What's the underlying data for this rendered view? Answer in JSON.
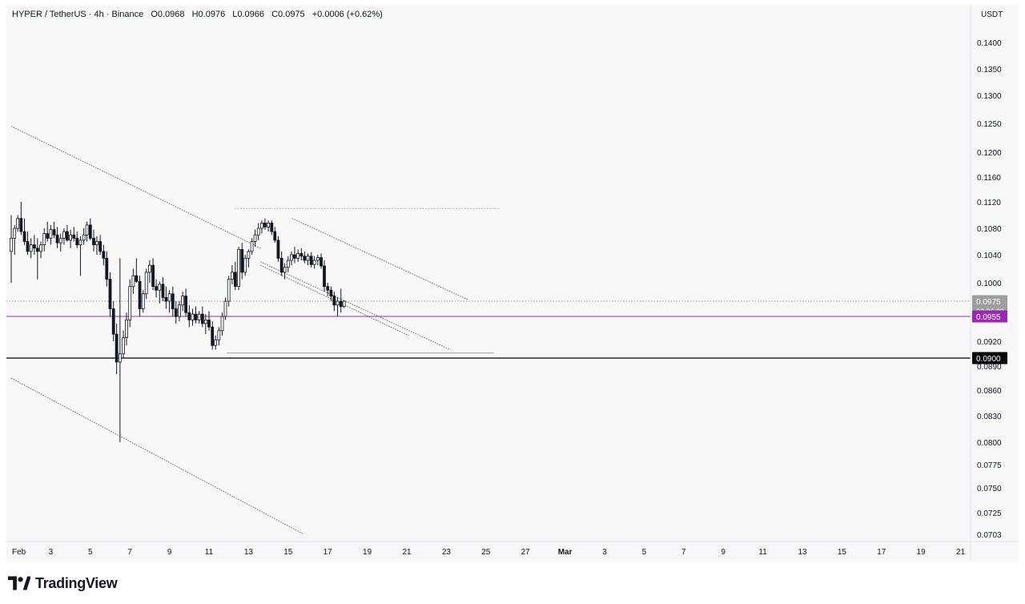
{
  "legend": {
    "symbol": "HYPER / TetherUS · 4h · Binance",
    "open": "O0.0968",
    "high": "H0.0976",
    "low": "L0.0966",
    "close": "C0.0975",
    "change": "+0.0006 (+0.62%)"
  },
  "branding": {
    "name": "TradingView"
  },
  "chart_data": {
    "type": "candlestick",
    "currency": "USDT",
    "timeframe": "4h",
    "x_tick_labels": [
      "Feb",
      "3",
      "5",
      "7",
      "9",
      "11",
      "13",
      "15",
      "17",
      "19",
      "21",
      "23",
      "25",
      "27",
      "Mar",
      "3",
      "5",
      "7",
      "9",
      "11",
      "13",
      "15",
      "17",
      "19",
      "21"
    ],
    "y_tick_labels": [
      "0.1400",
      "0.1350",
      "0.1300",
      "0.1250",
      "0.1200",
      "0.1160",
      "0.1120",
      "0.1080",
      "0.1040",
      "0.1000",
      "0.0920",
      "0.0890",
      "0.0860",
      "0.0830",
      "0.0800",
      "0.0775",
      "0.0750",
      "0.0725",
      "0.0703"
    ],
    "price_badges": [
      {
        "label": "0.0975",
        "sub": "02:36:39",
        "color": "#9e9e9e"
      },
      {
        "label": "0.0955",
        "color": "#9c27b0"
      },
      {
        "label": "0.0900",
        "color": "#000000"
      }
    ],
    "levels": [
      {
        "price": 0.0955,
        "color": "#9c27b0",
        "style": "solid"
      },
      {
        "price": 0.09,
        "color": "#000000",
        "style": "solid"
      },
      {
        "price": 0.0975,
        "color": "#9e9e9e",
        "style": "dotted"
      },
      {
        "price": 0.111,
        "color": "#9e9e9e",
        "style": "dotted",
        "from_day": 11.3,
        "to_day": 24.7
      },
      {
        "price": 0.0906,
        "color": "#9e9e9e",
        "style": "solid",
        "from_day": 10.9,
        "to_day": 24.4
      }
    ],
    "trendlines": [
      {
        "from": [
          0,
          0.1245
        ],
        "to": [
          12.6,
          0.105
        ]
      },
      {
        "from": [
          12.6,
          0.1025
        ],
        "to": [
          20.1,
          0.0928
        ]
      },
      {
        "from": [
          12.6,
          0.103
        ],
        "to": [
          22.2,
          0.091
        ]
      },
      {
        "from": [
          14.2,
          0.1095
        ],
        "to": [
          23.1,
          0.0977
        ]
      },
      {
        "from": [
          0,
          0.0875
        ],
        "to": [
          14.8,
          0.0703
        ]
      }
    ],
    "candles": [
      {
        "day": 0.0,
        "o": 0.1045,
        "h": 0.11,
        "l": 0.1,
        "c": 0.1065
      },
      {
        "day": 0.17,
        "o": 0.1065,
        "h": 0.1085,
        "l": 0.104,
        "c": 0.108
      },
      {
        "day": 0.33,
        "o": 0.108,
        "h": 0.11,
        "l": 0.1075,
        "c": 0.1095
      },
      {
        "day": 0.5,
        "o": 0.1095,
        "h": 0.112,
        "l": 0.107,
        "c": 0.1075
      },
      {
        "day": 0.67,
        "o": 0.1075,
        "h": 0.1095,
        "l": 0.1055,
        "c": 0.106
      },
      {
        "day": 0.83,
        "o": 0.106,
        "h": 0.1075,
        "l": 0.104,
        "c": 0.1045
      },
      {
        "day": 1.0,
        "o": 0.1045,
        "h": 0.1065,
        "l": 0.1035,
        "c": 0.1055
      },
      {
        "day": 1.17,
        "o": 0.1055,
        "h": 0.107,
        "l": 0.104,
        "c": 0.105
      },
      {
        "day": 1.33,
        "o": 0.105,
        "h": 0.1065,
        "l": 0.1005,
        "c": 0.1045
      },
      {
        "day": 1.5,
        "o": 0.1045,
        "h": 0.106,
        "l": 0.1035,
        "c": 0.1055
      },
      {
        "day": 1.67,
        "o": 0.1055,
        "h": 0.108,
        "l": 0.1045,
        "c": 0.1072
      },
      {
        "day": 1.83,
        "o": 0.1072,
        "h": 0.109,
        "l": 0.106,
        "c": 0.1065
      },
      {
        "day": 2.0,
        "o": 0.1065,
        "h": 0.1085,
        "l": 0.1055,
        "c": 0.1078
      },
      {
        "day": 2.17,
        "o": 0.1078,
        "h": 0.109,
        "l": 0.1065,
        "c": 0.107
      },
      {
        "day": 2.33,
        "o": 0.107,
        "h": 0.1082,
        "l": 0.105,
        "c": 0.1058
      },
      {
        "day": 2.5,
        "o": 0.1058,
        "h": 0.1072,
        "l": 0.1045,
        "c": 0.1065
      },
      {
        "day": 2.67,
        "o": 0.1065,
        "h": 0.108,
        "l": 0.1055,
        "c": 0.1075
      },
      {
        "day": 2.83,
        "o": 0.1075,
        "h": 0.1085,
        "l": 0.106,
        "c": 0.1062
      },
      {
        "day": 3.0,
        "o": 0.1062,
        "h": 0.1078,
        "l": 0.105,
        "c": 0.107
      },
      {
        "day": 3.17,
        "o": 0.107,
        "h": 0.1082,
        "l": 0.106,
        "c": 0.1065
      },
      {
        "day": 3.33,
        "o": 0.1065,
        "h": 0.1075,
        "l": 0.105,
        "c": 0.1055
      },
      {
        "day": 3.5,
        "o": 0.1055,
        "h": 0.1068,
        "l": 0.101,
        "c": 0.1062
      },
      {
        "day": 3.67,
        "o": 0.1062,
        "h": 0.108,
        "l": 0.1055,
        "c": 0.107
      },
      {
        "day": 3.83,
        "o": 0.107,
        "h": 0.109,
        "l": 0.106,
        "c": 0.1085
      },
      {
        "day": 4.0,
        "o": 0.1085,
        "h": 0.1095,
        "l": 0.1062,
        "c": 0.1065
      },
      {
        "day": 4.17,
        "o": 0.1065,
        "h": 0.1078,
        "l": 0.1045,
        "c": 0.1055
      },
      {
        "day": 4.33,
        "o": 0.1055,
        "h": 0.1068,
        "l": 0.104,
        "c": 0.106
      },
      {
        "day": 4.5,
        "o": 0.106,
        "h": 0.107,
        "l": 0.104,
        "c": 0.1045
      },
      {
        "day": 4.67,
        "o": 0.1045,
        "h": 0.1055,
        "l": 0.1025,
        "c": 0.1035
      },
      {
        "day": 4.83,
        "o": 0.1035,
        "h": 0.1045,
        "l": 0.0995,
        "c": 0.1005
      },
      {
        "day": 5.0,
        "o": 0.1005,
        "h": 0.1015,
        "l": 0.0955,
        "c": 0.0965
      },
      {
        "day": 5.17,
        "o": 0.0965,
        "h": 0.0975,
        "l": 0.092,
        "c": 0.093
      },
      {
        "day": 5.33,
        "o": 0.093,
        "h": 0.0945,
        "l": 0.088,
        "c": 0.0895
      },
      {
        "day": 5.5,
        "o": 0.0895,
        "h": 0.1035,
        "l": 0.08,
        "c": 0.0905
      },
      {
        "day": 5.67,
        "o": 0.0905,
        "h": 0.0935,
        "l": 0.09,
        "c": 0.0925
      },
      {
        "day": 5.83,
        "o": 0.0925,
        "h": 0.096,
        "l": 0.0915,
        "c": 0.095
      },
      {
        "day": 6.0,
        "o": 0.095,
        "h": 0.1005,
        "l": 0.094,
        "c": 0.0995
      },
      {
        "day": 6.17,
        "o": 0.0995,
        "h": 0.102,
        "l": 0.0985,
        "c": 0.101
      },
      {
        "day": 6.33,
        "o": 0.101,
        "h": 0.1035,
        "l": 0.1,
        "c": 0.1002
      },
      {
        "day": 6.5,
        "o": 0.1002,
        "h": 0.101,
        "l": 0.0955,
        "c": 0.0965
      },
      {
        "day": 6.67,
        "o": 0.0965,
        "h": 0.099,
        "l": 0.096,
        "c": 0.0985
      },
      {
        "day": 6.83,
        "o": 0.0985,
        "h": 0.102,
        "l": 0.0978,
        "c": 0.1015
      },
      {
        "day": 7.0,
        "o": 0.1015,
        "h": 0.1032,
        "l": 0.1,
        "c": 0.1025
      },
      {
        "day": 7.17,
        "o": 0.1025,
        "h": 0.1035,
        "l": 0.099,
        "c": 0.0995
      },
      {
        "day": 7.33,
        "o": 0.0995,
        "h": 0.1005,
        "l": 0.098,
        "c": 0.099
      },
      {
        "day": 7.5,
        "o": 0.099,
        "h": 0.1002,
        "l": 0.0972,
        "c": 0.0998
      },
      {
        "day": 7.67,
        "o": 0.0998,
        "h": 0.1008,
        "l": 0.0975,
        "c": 0.098
      },
      {
        "day": 7.83,
        "o": 0.098,
        "h": 0.0995,
        "l": 0.0965,
        "c": 0.0975
      },
      {
        "day": 8.0,
        "o": 0.0975,
        "h": 0.099,
        "l": 0.096,
        "c": 0.0985
      },
      {
        "day": 8.17,
        "o": 0.0985,
        "h": 0.0995,
        "l": 0.0955,
        "c": 0.0965
      },
      {
        "day": 8.33,
        "o": 0.0965,
        "h": 0.0975,
        "l": 0.0945,
        "c": 0.0955
      },
      {
        "day": 8.5,
        "o": 0.0955,
        "h": 0.0975,
        "l": 0.0948,
        "c": 0.097
      },
      {
        "day": 8.67,
        "o": 0.097,
        "h": 0.0988,
        "l": 0.0962,
        "c": 0.0982
      },
      {
        "day": 8.83,
        "o": 0.0982,
        "h": 0.0992,
        "l": 0.0955,
        "c": 0.096
      },
      {
        "day": 9.0,
        "o": 0.096,
        "h": 0.097,
        "l": 0.094,
        "c": 0.095
      },
      {
        "day": 9.17,
        "o": 0.095,
        "h": 0.0965,
        "l": 0.0942,
        "c": 0.0958
      },
      {
        "day": 9.33,
        "o": 0.0958,
        "h": 0.0968,
        "l": 0.0945,
        "c": 0.095
      },
      {
        "day": 9.5,
        "o": 0.095,
        "h": 0.0962,
        "l": 0.0945,
        "c": 0.0958
      },
      {
        "day": 9.67,
        "o": 0.0958,
        "h": 0.0968,
        "l": 0.094,
        "c": 0.0945
      },
      {
        "day": 9.83,
        "o": 0.0945,
        "h": 0.0958,
        "l": 0.093,
        "c": 0.095
      },
      {
        "day": 10.0,
        "o": 0.095,
        "h": 0.0962,
        "l": 0.0935,
        "c": 0.094
      },
      {
        "day": 10.17,
        "o": 0.094,
        "h": 0.0948,
        "l": 0.091,
        "c": 0.0915
      },
      {
        "day": 10.33,
        "o": 0.0915,
        "h": 0.0928,
        "l": 0.091,
        "c": 0.0922
      },
      {
        "day": 10.5,
        "o": 0.0922,
        "h": 0.094,
        "l": 0.0915,
        "c": 0.0935
      },
      {
        "day": 10.67,
        "o": 0.0935,
        "h": 0.096,
        "l": 0.0928,
        "c": 0.0955
      },
      {
        "day": 10.83,
        "o": 0.0955,
        "h": 0.098,
        "l": 0.095,
        "c": 0.0975
      },
      {
        "day": 11.0,
        "o": 0.0975,
        "h": 0.101,
        "l": 0.0968,
        "c": 0.1005
      },
      {
        "day": 11.17,
        "o": 0.1005,
        "h": 0.1025,
        "l": 0.0998,
        "c": 0.1015
      },
      {
        "day": 11.33,
        "o": 0.1015,
        "h": 0.103,
        "l": 0.099,
        "c": 0.0995
      },
      {
        "day": 11.5,
        "o": 0.0995,
        "h": 0.1052,
        "l": 0.099,
        "c": 0.1048
      },
      {
        "day": 11.67,
        "o": 0.1048,
        "h": 0.1058,
        "l": 0.1005,
        "c": 0.1015
      },
      {
        "day": 11.83,
        "o": 0.1015,
        "h": 0.104,
        "l": 0.101,
        "c": 0.1035
      },
      {
        "day": 12.0,
        "o": 0.1035,
        "h": 0.1048,
        "l": 0.1022,
        "c": 0.1045
      },
      {
        "day": 12.17,
        "o": 0.1045,
        "h": 0.1065,
        "l": 0.104,
        "c": 0.106
      },
      {
        "day": 12.33,
        "o": 0.106,
        "h": 0.1078,
        "l": 0.1052,
        "c": 0.107
      },
      {
        "day": 12.5,
        "o": 0.107,
        "h": 0.1088,
        "l": 0.1062,
        "c": 0.108
      },
      {
        "day": 12.67,
        "o": 0.108,
        "h": 0.1092,
        "l": 0.1072,
        "c": 0.1088
      },
      {
        "day": 12.83,
        "o": 0.1088,
        "h": 0.1095,
        "l": 0.1078,
        "c": 0.1082
      },
      {
        "day": 13.0,
        "o": 0.1082,
        "h": 0.1092,
        "l": 0.1075,
        "c": 0.1088
      },
      {
        "day": 13.17,
        "o": 0.1088,
        "h": 0.1092,
        "l": 0.107,
        "c": 0.1075
      },
      {
        "day": 13.33,
        "o": 0.1075,
        "h": 0.1082,
        "l": 0.1058,
        "c": 0.1062
      },
      {
        "day": 13.5,
        "o": 0.1062,
        "h": 0.1068,
        "l": 0.103,
        "c": 0.1035
      },
      {
        "day": 13.67,
        "o": 0.1035,
        "h": 0.1045,
        "l": 0.101,
        "c": 0.1015
      },
      {
        "day": 13.83,
        "o": 0.1015,
        "h": 0.1028,
        "l": 0.1005,
        "c": 0.1022
      },
      {
        "day": 14.0,
        "o": 0.1022,
        "h": 0.1038,
        "l": 0.1015,
        "c": 0.1032
      },
      {
        "day": 14.17,
        "o": 0.1032,
        "h": 0.1045,
        "l": 0.1025,
        "c": 0.104
      },
      {
        "day": 14.33,
        "o": 0.104,
        "h": 0.1052,
        "l": 0.1028,
        "c": 0.1035
      },
      {
        "day": 14.5,
        "o": 0.1035,
        "h": 0.1048,
        "l": 0.103,
        "c": 0.1042
      },
      {
        "day": 14.67,
        "o": 0.1042,
        "h": 0.105,
        "l": 0.1032,
        "c": 0.1038
      },
      {
        "day": 14.83,
        "o": 0.1038,
        "h": 0.1045,
        "l": 0.1028,
        "c": 0.1032
      },
      {
        "day": 15.0,
        "o": 0.1032,
        "h": 0.1042,
        "l": 0.1025,
        "c": 0.1038
      },
      {
        "day": 15.17,
        "o": 0.1038,
        "h": 0.1044,
        "l": 0.1022,
        "c": 0.1026
      },
      {
        "day": 15.33,
        "o": 0.1026,
        "h": 0.1038,
        "l": 0.102,
        "c": 0.1032
      },
      {
        "day": 15.5,
        "o": 0.1032,
        "h": 0.104,
        "l": 0.1025,
        "c": 0.1036
      },
      {
        "day": 15.67,
        "o": 0.1036,
        "h": 0.1042,
        "l": 0.102,
        "c": 0.1024
      },
      {
        "day": 15.83,
        "o": 0.1024,
        "h": 0.1032,
        "l": 0.0988,
        "c": 0.0995
      },
      {
        "day": 16.0,
        "o": 0.0995,
        "h": 0.1,
        "l": 0.0982,
        "c": 0.099
      },
      {
        "day": 16.17,
        "o": 0.099,
        "h": 0.0995,
        "l": 0.0975,
        "c": 0.0982
      },
      {
        "day": 16.33,
        "o": 0.0982,
        "h": 0.0988,
        "l": 0.0962,
        "c": 0.097
      },
      {
        "day": 16.5,
        "o": 0.097,
        "h": 0.098,
        "l": 0.0955,
        "c": 0.0975
      },
      {
        "day": 16.67,
        "o": 0.0975,
        "h": 0.0992,
        "l": 0.096,
        "c": 0.0968
      },
      {
        "day": 16.83,
        "o": 0.0968,
        "h": 0.0976,
        "l": 0.0966,
        "c": 0.0975
      }
    ]
  }
}
